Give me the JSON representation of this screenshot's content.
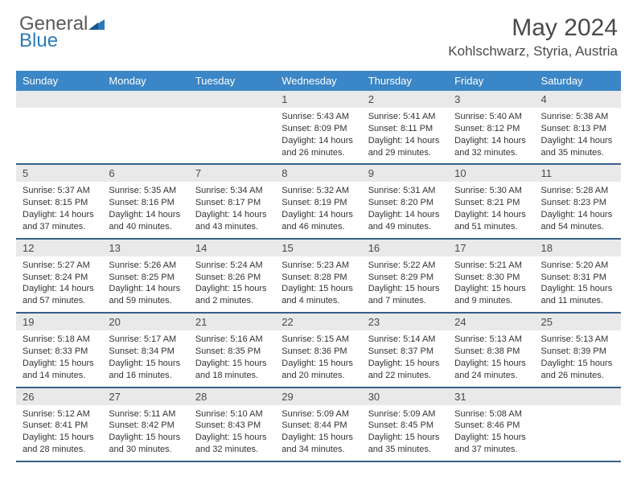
{
  "brand": {
    "part1": "General",
    "part2": "Blue"
  },
  "title": "May 2024",
  "location": "Kohlschwarz, Styria, Austria",
  "colors": {
    "header_bg": "#3b86c6",
    "row_border": "#375f8a",
    "daynum_bg": "#e9e9e9",
    "text": "#333333",
    "title_text": "#4a4a4a"
  },
  "day_names": [
    "Sunday",
    "Monday",
    "Tuesday",
    "Wednesday",
    "Thursday",
    "Friday",
    "Saturday"
  ],
  "weeks": [
    [
      {
        "n": "",
        "lines": []
      },
      {
        "n": "",
        "lines": []
      },
      {
        "n": "",
        "lines": []
      },
      {
        "n": "1",
        "lines": [
          "Sunrise: 5:43 AM",
          "Sunset: 8:09 PM",
          "Daylight: 14 hours",
          "and 26 minutes."
        ]
      },
      {
        "n": "2",
        "lines": [
          "Sunrise: 5:41 AM",
          "Sunset: 8:11 PM",
          "Daylight: 14 hours",
          "and 29 minutes."
        ]
      },
      {
        "n": "3",
        "lines": [
          "Sunrise: 5:40 AM",
          "Sunset: 8:12 PM",
          "Daylight: 14 hours",
          "and 32 minutes."
        ]
      },
      {
        "n": "4",
        "lines": [
          "Sunrise: 5:38 AM",
          "Sunset: 8:13 PM",
          "Daylight: 14 hours",
          "and 35 minutes."
        ]
      }
    ],
    [
      {
        "n": "5",
        "lines": [
          "Sunrise: 5:37 AM",
          "Sunset: 8:15 PM",
          "Daylight: 14 hours",
          "and 37 minutes."
        ]
      },
      {
        "n": "6",
        "lines": [
          "Sunrise: 5:35 AM",
          "Sunset: 8:16 PM",
          "Daylight: 14 hours",
          "and 40 minutes."
        ]
      },
      {
        "n": "7",
        "lines": [
          "Sunrise: 5:34 AM",
          "Sunset: 8:17 PM",
          "Daylight: 14 hours",
          "and 43 minutes."
        ]
      },
      {
        "n": "8",
        "lines": [
          "Sunrise: 5:32 AM",
          "Sunset: 8:19 PM",
          "Daylight: 14 hours",
          "and 46 minutes."
        ]
      },
      {
        "n": "9",
        "lines": [
          "Sunrise: 5:31 AM",
          "Sunset: 8:20 PM",
          "Daylight: 14 hours",
          "and 49 minutes."
        ]
      },
      {
        "n": "10",
        "lines": [
          "Sunrise: 5:30 AM",
          "Sunset: 8:21 PM",
          "Daylight: 14 hours",
          "and 51 minutes."
        ]
      },
      {
        "n": "11",
        "lines": [
          "Sunrise: 5:28 AM",
          "Sunset: 8:23 PM",
          "Daylight: 14 hours",
          "and 54 minutes."
        ]
      }
    ],
    [
      {
        "n": "12",
        "lines": [
          "Sunrise: 5:27 AM",
          "Sunset: 8:24 PM",
          "Daylight: 14 hours",
          "and 57 minutes."
        ]
      },
      {
        "n": "13",
        "lines": [
          "Sunrise: 5:26 AM",
          "Sunset: 8:25 PM",
          "Daylight: 14 hours",
          "and 59 minutes."
        ]
      },
      {
        "n": "14",
        "lines": [
          "Sunrise: 5:24 AM",
          "Sunset: 8:26 PM",
          "Daylight: 15 hours",
          "and 2 minutes."
        ]
      },
      {
        "n": "15",
        "lines": [
          "Sunrise: 5:23 AM",
          "Sunset: 8:28 PM",
          "Daylight: 15 hours",
          "and 4 minutes."
        ]
      },
      {
        "n": "16",
        "lines": [
          "Sunrise: 5:22 AM",
          "Sunset: 8:29 PM",
          "Daylight: 15 hours",
          "and 7 minutes."
        ]
      },
      {
        "n": "17",
        "lines": [
          "Sunrise: 5:21 AM",
          "Sunset: 8:30 PM",
          "Daylight: 15 hours",
          "and 9 minutes."
        ]
      },
      {
        "n": "18",
        "lines": [
          "Sunrise: 5:20 AM",
          "Sunset: 8:31 PM",
          "Daylight: 15 hours",
          "and 11 minutes."
        ]
      }
    ],
    [
      {
        "n": "19",
        "lines": [
          "Sunrise: 5:18 AM",
          "Sunset: 8:33 PM",
          "Daylight: 15 hours",
          "and 14 minutes."
        ]
      },
      {
        "n": "20",
        "lines": [
          "Sunrise: 5:17 AM",
          "Sunset: 8:34 PM",
          "Daylight: 15 hours",
          "and 16 minutes."
        ]
      },
      {
        "n": "21",
        "lines": [
          "Sunrise: 5:16 AM",
          "Sunset: 8:35 PM",
          "Daylight: 15 hours",
          "and 18 minutes."
        ]
      },
      {
        "n": "22",
        "lines": [
          "Sunrise: 5:15 AM",
          "Sunset: 8:36 PM",
          "Daylight: 15 hours",
          "and 20 minutes."
        ]
      },
      {
        "n": "23",
        "lines": [
          "Sunrise: 5:14 AM",
          "Sunset: 8:37 PM",
          "Daylight: 15 hours",
          "and 22 minutes."
        ]
      },
      {
        "n": "24",
        "lines": [
          "Sunrise: 5:13 AM",
          "Sunset: 8:38 PM",
          "Daylight: 15 hours",
          "and 24 minutes."
        ]
      },
      {
        "n": "25",
        "lines": [
          "Sunrise: 5:13 AM",
          "Sunset: 8:39 PM",
          "Daylight: 15 hours",
          "and 26 minutes."
        ]
      }
    ],
    [
      {
        "n": "26",
        "lines": [
          "Sunrise: 5:12 AM",
          "Sunset: 8:41 PM",
          "Daylight: 15 hours",
          "and 28 minutes."
        ]
      },
      {
        "n": "27",
        "lines": [
          "Sunrise: 5:11 AM",
          "Sunset: 8:42 PM",
          "Daylight: 15 hours",
          "and 30 minutes."
        ]
      },
      {
        "n": "28",
        "lines": [
          "Sunrise: 5:10 AM",
          "Sunset: 8:43 PM",
          "Daylight: 15 hours",
          "and 32 minutes."
        ]
      },
      {
        "n": "29",
        "lines": [
          "Sunrise: 5:09 AM",
          "Sunset: 8:44 PM",
          "Daylight: 15 hours",
          "and 34 minutes."
        ]
      },
      {
        "n": "30",
        "lines": [
          "Sunrise: 5:09 AM",
          "Sunset: 8:45 PM",
          "Daylight: 15 hours",
          "and 35 minutes."
        ]
      },
      {
        "n": "31",
        "lines": [
          "Sunrise: 5:08 AM",
          "Sunset: 8:46 PM",
          "Daylight: 15 hours",
          "and 37 minutes."
        ]
      },
      {
        "n": "",
        "lines": []
      }
    ]
  ]
}
